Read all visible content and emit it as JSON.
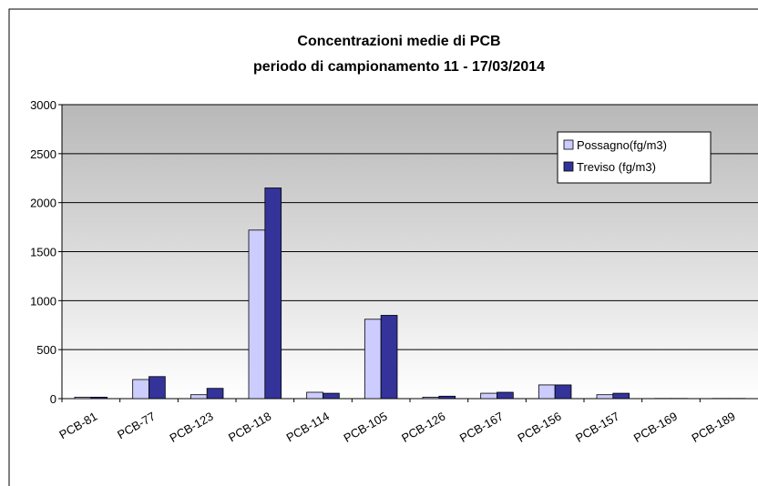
{
  "chart_data": {
    "type": "bar",
    "title": "Concentrazioni medie di PCB",
    "subtitle": "periodo di campionamento 11 - 17/03/2014",
    "categories": [
      "PCB-81",
      "PCB-77",
      "PCB-123",
      "PCB-118",
      "PCB-114",
      "PCB-105",
      "PCB-126",
      "PCB-167",
      "PCB-156",
      "PCB-157",
      "PCB-169",
      "PCB-189"
    ],
    "series": [
      {
        "name": "Possagno(fg/m3)",
        "color": "#ccccff",
        "values": [
          15,
          195,
          40,
          1720,
          65,
          810,
          15,
          55,
          140,
          40,
          2,
          2
        ]
      },
      {
        "name": "Treviso (fg/m3)",
        "color": "#333399",
        "values": [
          15,
          225,
          105,
          2150,
          55,
          850,
          25,
          65,
          140,
          55,
          2,
          2
        ]
      }
    ],
    "ylim": [
      0,
      3000
    ],
    "yticks": [
      0,
      500,
      1000,
      1500,
      2000,
      2500,
      3000
    ],
    "grid": true,
    "legend": "top-right"
  }
}
